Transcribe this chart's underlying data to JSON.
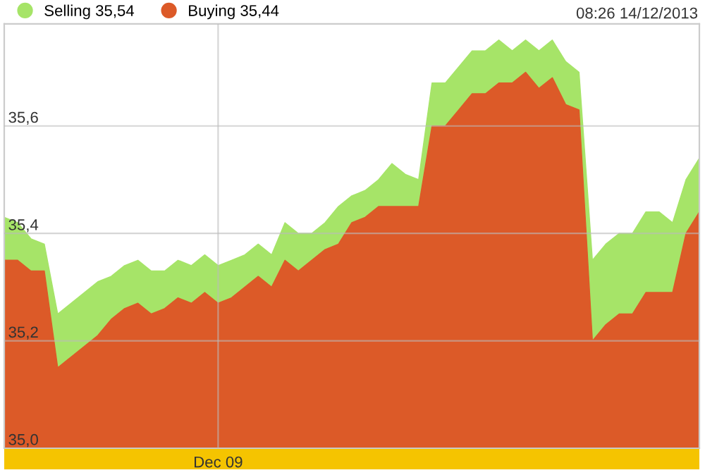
{
  "chart_data": {
    "type": "area",
    "annotations": [
      "08:26 14/12/2013"
    ],
    "categories": [
      null,
      null,
      null,
      null,
      null,
      null,
      null,
      null,
      null,
      null,
      null,
      null,
      null,
      null,
      null,
      null,
      "Dec 09",
      null,
      null,
      null,
      null,
      null,
      null,
      null,
      null,
      null,
      null,
      null,
      null,
      null,
      null,
      null,
      null,
      null,
      null,
      null,
      null,
      null,
      null,
      null,
      null,
      null,
      null,
      null,
      null,
      null,
      null,
      null,
      null,
      null,
      null,
      null,
      null
    ],
    "series": [
      {
        "name": "Selling 35,54",
        "color": "#a6e468",
        "values": [
          35.43,
          35.42,
          35.39,
          35.38,
          35.25,
          35.27,
          35.29,
          35.31,
          35.32,
          35.34,
          35.35,
          35.33,
          35.33,
          35.35,
          35.34,
          35.36,
          35.34,
          35.35,
          35.36,
          35.38,
          35.36,
          35.42,
          35.4,
          35.4,
          35.42,
          35.45,
          35.47,
          35.48,
          35.5,
          35.53,
          35.51,
          35.5,
          35.68,
          35.68,
          35.71,
          35.74,
          35.74,
          35.76,
          35.74,
          35.76,
          35.74,
          35.76,
          35.72,
          35.7,
          35.35,
          35.38,
          35.4,
          35.4,
          35.44,
          35.44,
          35.42,
          35.5,
          35.54
        ]
      },
      {
        "name": "Buying 35,44",
        "color": "#dc5a28",
        "values": [
          35.35,
          35.35,
          35.33,
          35.33,
          35.15,
          35.17,
          35.19,
          35.21,
          35.24,
          35.26,
          35.27,
          35.25,
          35.26,
          35.28,
          35.27,
          35.29,
          35.27,
          35.28,
          35.3,
          35.32,
          35.3,
          35.35,
          35.33,
          35.35,
          35.37,
          35.38,
          35.42,
          35.43,
          35.45,
          35.45,
          35.45,
          35.45,
          35.6,
          35.6,
          35.63,
          35.66,
          35.66,
          35.68,
          35.68,
          35.7,
          35.67,
          35.69,
          35.64,
          35.63,
          35.2,
          35.23,
          35.25,
          35.25,
          35.29,
          35.29,
          35.29,
          35.4,
          35.44
        ]
      }
    ],
    "ylim": [
      35.0,
      35.79
    ],
    "yticks": [
      {
        "value": 35.0,
        "label": "35,0"
      },
      {
        "value": 35.2,
        "label": "35,2"
      },
      {
        "value": 35.4,
        "label": "35,4"
      },
      {
        "value": 35.6,
        "label": "35,6"
      }
    ],
    "grid": true,
    "legend": "top left"
  }
}
